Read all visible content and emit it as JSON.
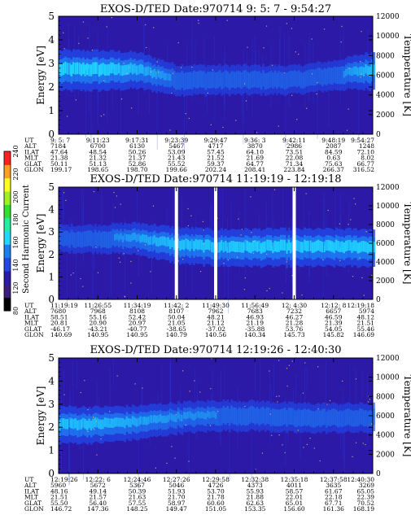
{
  "colors": {
    "background": "#2c19a8",
    "band_core": "#1fd8ff",
    "band_mid": "#1e7cf0",
    "band_edge": "#2147e6",
    "dots": "#f0c06a",
    "gap": "#ffffff"
  },
  "colorbar": {
    "label": "Second Harmonic Current",
    "ticks": [
      "80",
      "120",
      "140",
      "160",
      "180",
      "200",
      "220",
      "240"
    ],
    "colors": [
      "#000000",
      "#3a1e7a",
      "#2c19a8",
      "#2147e6",
      "#1e7cf0",
      "#1fd8ff",
      "#20f0a0",
      "#30e030",
      "#a0f020",
      "#ffff20",
      "#ffa020",
      "#ff2020"
    ]
  },
  "panels": [
    {
      "title": "EXOS-D/TED   Date:970714   9: 5: 7 - 9:54:27",
      "ylabel": "Energy [eV]",
      "y2label": "Temperature [K]",
      "yticks": [
        "0",
        "1",
        "2",
        "3",
        "4",
        "5"
      ],
      "y2ticks": [
        "0",
        "2000",
        "4000",
        "6000",
        "8000",
        "10000",
        "12000"
      ],
      "row_labels": [
        "UT",
        "ALT",
        "ILAT",
        "MLT",
        "GLAT",
        "GLON"
      ],
      "columns": [
        [
          "9: 5: 7",
          "7184",
          "47.64",
          "21.38",
          "50.11",
          "199.17"
        ],
        [
          "9:11:23",
          "6700",
          "48.54",
          "21.32",
          "51.13",
          "198.65"
        ],
        [
          "9:17:31",
          "6130",
          "50.26",
          "21.37",
          "52.86",
          "198.70"
        ],
        [
          "9:23:39",
          "5467",
          "53.09",
          "21.43",
          "55.52",
          "199.66"
        ],
        [
          "9:29:47",
          "4717",
          "57.45",
          "21.52",
          "59.37",
          "202.24"
        ],
        [
          "9:36: 3",
          "3870",
          "64.10",
          "21.69",
          "64.77",
          "208.41"
        ],
        [
          "9:42:11",
          "2986",
          "73.51",
          "22.08",
          "71.34",
          "223.84"
        ],
        [
          "9:48:19",
          "2087",
          "84.59",
          "0.63",
          "75.63",
          "266.37"
        ],
        [
          "9:54:27",
          "1248",
          "72.10",
          "8.02",
          "66.77",
          "316.52"
        ]
      ],
      "band": {
        "energy_eV": [
          2.7,
          2.7,
          2.7,
          2.3,
          2.3,
          2.3,
          2.3,
          2.5,
          2.7
        ],
        "intensity": [
          0.85,
          0.85,
          0.6,
          0.25,
          0.2,
          0.2,
          0.15,
          0.2,
          0.7
        ]
      },
      "gaps": []
    },
    {
      "title": "EXOS-D/TED   Date:970714   11:19:19 - 12:19:18",
      "ylabel": "Energy [eV]",
      "y2label": "Temperature [K]",
      "yticks": [
        "0",
        "1",
        "2",
        "3",
        "4",
        "5"
      ],
      "y2ticks": [
        "0",
        "2000",
        "4000",
        "6000",
        "8000",
        "10000",
        "12000"
      ],
      "row_labels": [
        "UT",
        "ALT",
        "ILAT",
        "MLT",
        "GLAT",
        "GLON"
      ],
      "columns": [
        [
          "11:19:19",
          "7680",
          "58.51",
          "20.81",
          "-46.17",
          "140.69"
        ],
        [
          "11:26:55",
          "7968",
          "55.16",
          "20.90",
          "-43.21",
          "140.95"
        ],
        [
          "11:34:19",
          "8108",
          "52.42",
          "20.97",
          "-40.77",
          "140.95"
        ],
        [
          "11:42: 2",
          "8107",
          "50.04",
          "21.05",
          "-38.65",
          "140.79"
        ],
        [
          "11:49:30",
          "7962",
          "48.21",
          "21.12",
          "-37.02",
          "140.56"
        ],
        [
          "11:56:49",
          "7683",
          "46.93",
          "21.19",
          "-35.88",
          "140.34"
        ],
        [
          "12: 4:30",
          "7232",
          "46.27",
          "21.28",
          "53.76",
          "145.73"
        ],
        [
          "12:12: 8",
          "6657",
          "46.59",
          "21.39",
          "54.05",
          "145.82"
        ],
        [
          "12:19:18",
          "5974",
          "48.12",
          "21.51",
          "55.46",
          "146.69"
        ]
      ],
      "band": {
        "energy_eV": [
          2.7,
          2.7,
          2.7,
          2.4,
          2.3,
          2.3,
          2.3,
          2.3,
          2.3
        ],
        "intensity": [
          0.15,
          0.2,
          0.45,
          0.7,
          0.75,
          0.8,
          0.8,
          0.8,
          0.8
        ]
      },
      "gaps": [
        "11:42: 2",
        "11:49:30",
        "12: 4:30"
      ]
    },
    {
      "title": "EXOS-D/TED   Date:970714   12:19:26 - 12:40:30",
      "ylabel": "Energy [eV]",
      "y2label": "Temperature [K]",
      "yticks": [
        "0",
        "1",
        "2",
        "3",
        "4",
        "5"
      ],
      "y2ticks": [
        "0",
        "2000",
        "4000",
        "6000",
        "8000",
        "10000",
        "12000"
      ],
      "row_labels": [
        "UT",
        "ALT",
        "ILAT",
        "MLT",
        "GLAT",
        "GLON"
      ],
      "columns": [
        [
          "12:19:26",
          "5960",
          "48.16",
          "21.51",
          "55.50",
          "146.72"
        ],
        [
          "12:22: 6",
          "5672",
          "49.14",
          "21.57",
          "56.40",
          "147.36"
        ],
        [
          "12:24:46",
          "5367",
          "50.39",
          "21.63",
          "57.55",
          "148.25"
        ],
        [
          "12:27:26",
          "5046",
          "51.93",
          "21.70",
          "58.97",
          "149.47"
        ],
        [
          "12:29:58",
          "4726",
          "53.70",
          "21.78",
          "60.60",
          "151.05"
        ],
        [
          "12:32:38",
          "4373",
          "55.93",
          "21.88",
          "62.63",
          "153.35"
        ],
        [
          "12:35:18",
          "4011",
          "58.57",
          "22.01",
          "65.01",
          "156.60"
        ],
        [
          "12:37:58",
          "3635",
          "61.67",
          "22.18",
          "67.71",
          "161.36"
        ],
        [
          "12:40:30",
          "3269",
          "65.05",
          "22.39",
          "70.52",
          "168.19"
        ]
      ],
      "band": {
        "energy_eV": [
          2.1,
          2.1,
          2.2,
          2.4,
          2.5,
          2.5,
          2.4,
          2.4,
          2.4
        ],
        "intensity": [
          0.7,
          0.65,
          0.5,
          0.35,
          0.3,
          0.25,
          0.25,
          0.2,
          0.2
        ]
      },
      "gaps": []
    }
  ]
}
